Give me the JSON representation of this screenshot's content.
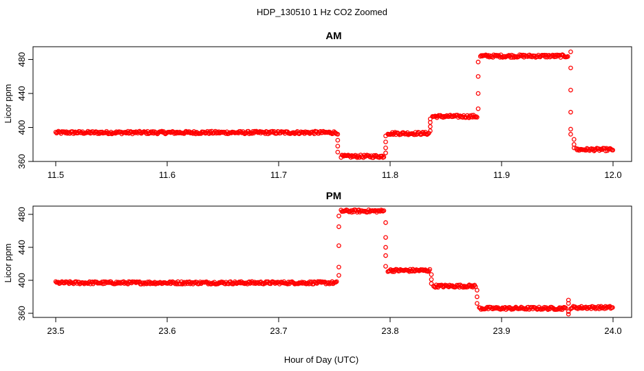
{
  "figure": {
    "title": "HDP_130510  1 Hz CO2 Zoomed",
    "xlabel": "Hour of Day (UTC)"
  },
  "colors": {
    "points": "#ff0000",
    "axes": "#000000",
    "background": "#ffffff"
  },
  "chart_data": [
    {
      "type": "scatter",
      "title": "AM",
      "xlabel": "",
      "ylabel": "Licor ppm",
      "xlim": [
        11.5,
        12.0
      ],
      "ylim": [
        360,
        495
      ],
      "x_ticks": [
        "11.5",
        "11.6",
        "11.7",
        "11.8",
        "11.9",
        "12.0"
      ],
      "y_ticks": [
        "360",
        "400",
        "440",
        "480"
      ],
      "grid": false,
      "marker": "open-circle",
      "series": [
        {
          "segments": [
            {
              "x_start": 11.5,
              "x_end": 11.752,
              "y": 394
            },
            {
              "x_start": 11.756,
              "x_end": 11.795,
              "y": 366
            },
            {
              "x_start": 11.798,
              "x_end": 11.835,
              "y": 393
            },
            {
              "x_start": 11.838,
              "x_end": 11.878,
              "y": 413
            },
            {
              "x_start": 11.881,
              "x_end": 11.96,
              "y": 484
            },
            {
              "x_start": 11.967,
              "x_end": 12.0,
              "y": 374
            }
          ],
          "transitions": [
            {
              "x": 11.753,
              "y": [
                392,
                385,
                378,
                371
              ]
            },
            {
              "x": 11.796,
              "y": [
                370,
                376,
                383,
                390
              ]
            },
            {
              "x": 11.836,
              "y": [
                396,
                401,
                406,
                410
              ]
            },
            {
              "x": 11.879,
              "y": [
                422,
                440,
                460,
                477
              ]
            },
            {
              "x": 11.962,
              "y": [
                489,
                470,
                444,
                418,
                398,
                392
              ]
            },
            {
              "x": 11.965,
              "y": [
                386,
                380,
                376
              ]
            }
          ]
        }
      ]
    },
    {
      "type": "scatter",
      "title": "PM",
      "xlabel": "",
      "ylabel": "Licor ppm",
      "xlim": [
        23.5,
        24.0
      ],
      "ylim": [
        355,
        490
      ],
      "x_ticks": [
        "23.5",
        "23.6",
        "23.7",
        "23.8",
        "23.9",
        "24.0"
      ],
      "y_ticks": [
        "360",
        "400",
        "440",
        "480"
      ],
      "grid": false,
      "marker": "open-circle",
      "series": [
        {
          "segments": [
            {
              "x_start": 23.5,
              "x_end": 23.752,
              "y": 397
            },
            {
              "x_start": 23.756,
              "x_end": 23.795,
              "y": 484
            },
            {
              "x_start": 23.798,
              "x_end": 23.836,
              "y": 412
            },
            {
              "x_start": 23.839,
              "x_end": 23.877,
              "y": 393
            },
            {
              "x_start": 23.88,
              "x_end": 23.958,
              "y": 366
            },
            {
              "x_start": 23.962,
              "x_end": 24.0,
              "y": 367
            }
          ],
          "transitions": [
            {
              "x": 23.754,
              "y": [
                406,
                416,
                442,
                465,
                478
              ]
            },
            {
              "x": 23.796,
              "y": [
                470,
                452,
                440,
                430,
                417
              ]
            },
            {
              "x": 23.837,
              "y": [
                407,
                401,
                396
              ]
            },
            {
              "x": 23.878,
              "y": [
                388,
                380,
                372
              ]
            },
            {
              "x": 23.96,
              "y": [
                376,
                372,
                362,
                359
              ]
            }
          ]
        }
      ]
    }
  ]
}
